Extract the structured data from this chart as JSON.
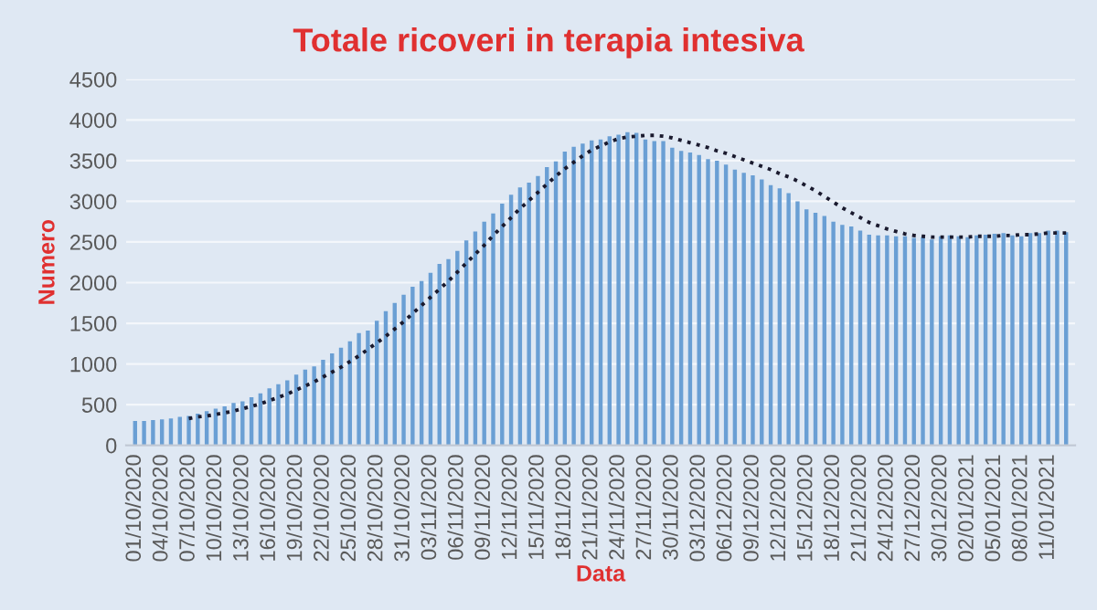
{
  "chart_data": {
    "type": "bar",
    "title": "Totale ricoveri in terapia intesiva",
    "xlabel": "Data",
    "ylabel": "Numero",
    "categories": [
      "01/10/2020",
      null,
      null,
      "04/10/2020",
      null,
      null,
      "07/10/2020",
      null,
      null,
      "10/10/2020",
      null,
      null,
      "13/10/2020",
      null,
      null,
      "16/10/2020",
      null,
      null,
      "19/10/2020",
      null,
      null,
      "22/10/2020",
      null,
      null,
      "25/10/2020",
      null,
      null,
      "28/10/2020",
      null,
      null,
      "31/10/2020",
      null,
      null,
      "03/11/2020",
      null,
      null,
      "06/11/2020",
      null,
      null,
      "09/11/2020",
      null,
      null,
      "12/11/2020",
      null,
      null,
      "15/11/2020",
      null,
      null,
      "18/11/2020",
      null,
      null,
      "21/11/2020",
      null,
      null,
      "24/11/2020",
      null,
      null,
      "27/11/2020",
      null,
      null,
      "30/11/2020",
      null,
      null,
      "03/12/2020",
      null,
      null,
      "06/12/2020",
      null,
      null,
      "09/12/2020",
      null,
      null,
      "12/12/2020",
      null,
      null,
      "15/12/2020",
      null,
      null,
      "18/12/2020",
      null,
      null,
      "21/12/2020",
      null,
      null,
      "24/12/2020",
      null,
      null,
      "27/12/2020",
      null,
      null,
      "30/12/2020",
      null,
      null,
      "02/01/2021",
      null,
      null,
      "05/01/2021",
      null,
      null,
      "08/01/2021",
      null,
      null,
      "11/01/2021",
      null,
      null
    ],
    "series": [
      {
        "color": "#6a9fd4",
        "values": [
          300,
          300,
          310,
          320,
          330,
          350,
          360,
          390,
          420,
          450,
          480,
          520,
          540,
          590,
          640,
          700,
          750,
          800,
          870,
          930,
          970,
          1050,
          1130,
          1200,
          1280,
          1380,
          1410,
          1530,
          1650,
          1750,
          1850,
          1950,
          2020,
          2120,
          2230,
          2290,
          2390,
          2520,
          2630,
          2750,
          2850,
          2970,
          3080,
          3170,
          3230,
          3310,
          3420,
          3490,
          3610,
          3670,
          3710,
          3750,
          3760,
          3800,
          3820,
          3850,
          3840,
          3760,
          3740,
          3740,
          3660,
          3620,
          3600,
          3570,
          3520,
          3500,
          3450,
          3390,
          3350,
          3320,
          3270,
          3200,
          3160,
          3100,
          3000,
          2900,
          2860,
          2820,
          2750,
          2710,
          2690,
          2640,
          2590,
          2580,
          2580,
          2570,
          2570,
          2550,
          2560,
          2530,
          2570,
          2580,
          2570,
          2560,
          2580,
          2590,
          2600,
          2610,
          2580,
          2570,
          2610,
          2610,
          2640,
          2640,
          2620
        ]
      },
      {
        "type": "line",
        "color": "#1a1a2e",
        "line_style": "dotted",
        "marker": "none",
        "values": [
          null,
          null,
          null,
          null,
          null,
          null,
          330,
          350,
          360,
          380,
          400,
          420,
          450,
          480,
          510,
          550,
          590,
          630,
          680,
          730,
          780,
          840,
          900,
          960,
          1030,
          1100,
          1180,
          1260,
          1340,
          1430,
          1520,
          1620,
          1720,
          1820,
          1920,
          2020,
          2130,
          2240,
          2350,
          2460,
          2580,
          2690,
          2800,
          2910,
          3010,
          3110,
          3210,
          3310,
          3400,
          3480,
          3560,
          3630,
          3680,
          3730,
          3770,
          3790,
          3800,
          3810,
          3810,
          3800,
          3780,
          3750,
          3720,
          3690,
          3660,
          3620,
          3590,
          3550,
          3510,
          3470,
          3430,
          3390,
          3340,
          3300,
          3250,
          3190,
          3130,
          3060,
          2990,
          2920,
          2860,
          2800,
          2740,
          2700,
          2660,
          2630,
          2600,
          2580,
          2570,
          2560,
          2560,
          2560,
          2560,
          2560,
          2570,
          2570,
          2570,
          2580,
          2580,
          2590,
          2590,
          2600,
          2610,
          2610,
          2610
        ]
      }
    ],
    "ylim": [
      0,
      4500
    ],
    "yticks": [
      0,
      500,
      1000,
      1500,
      2000,
      2500,
      3000,
      3500,
      4000,
      4500
    ],
    "grid": "y",
    "legend": false
  }
}
